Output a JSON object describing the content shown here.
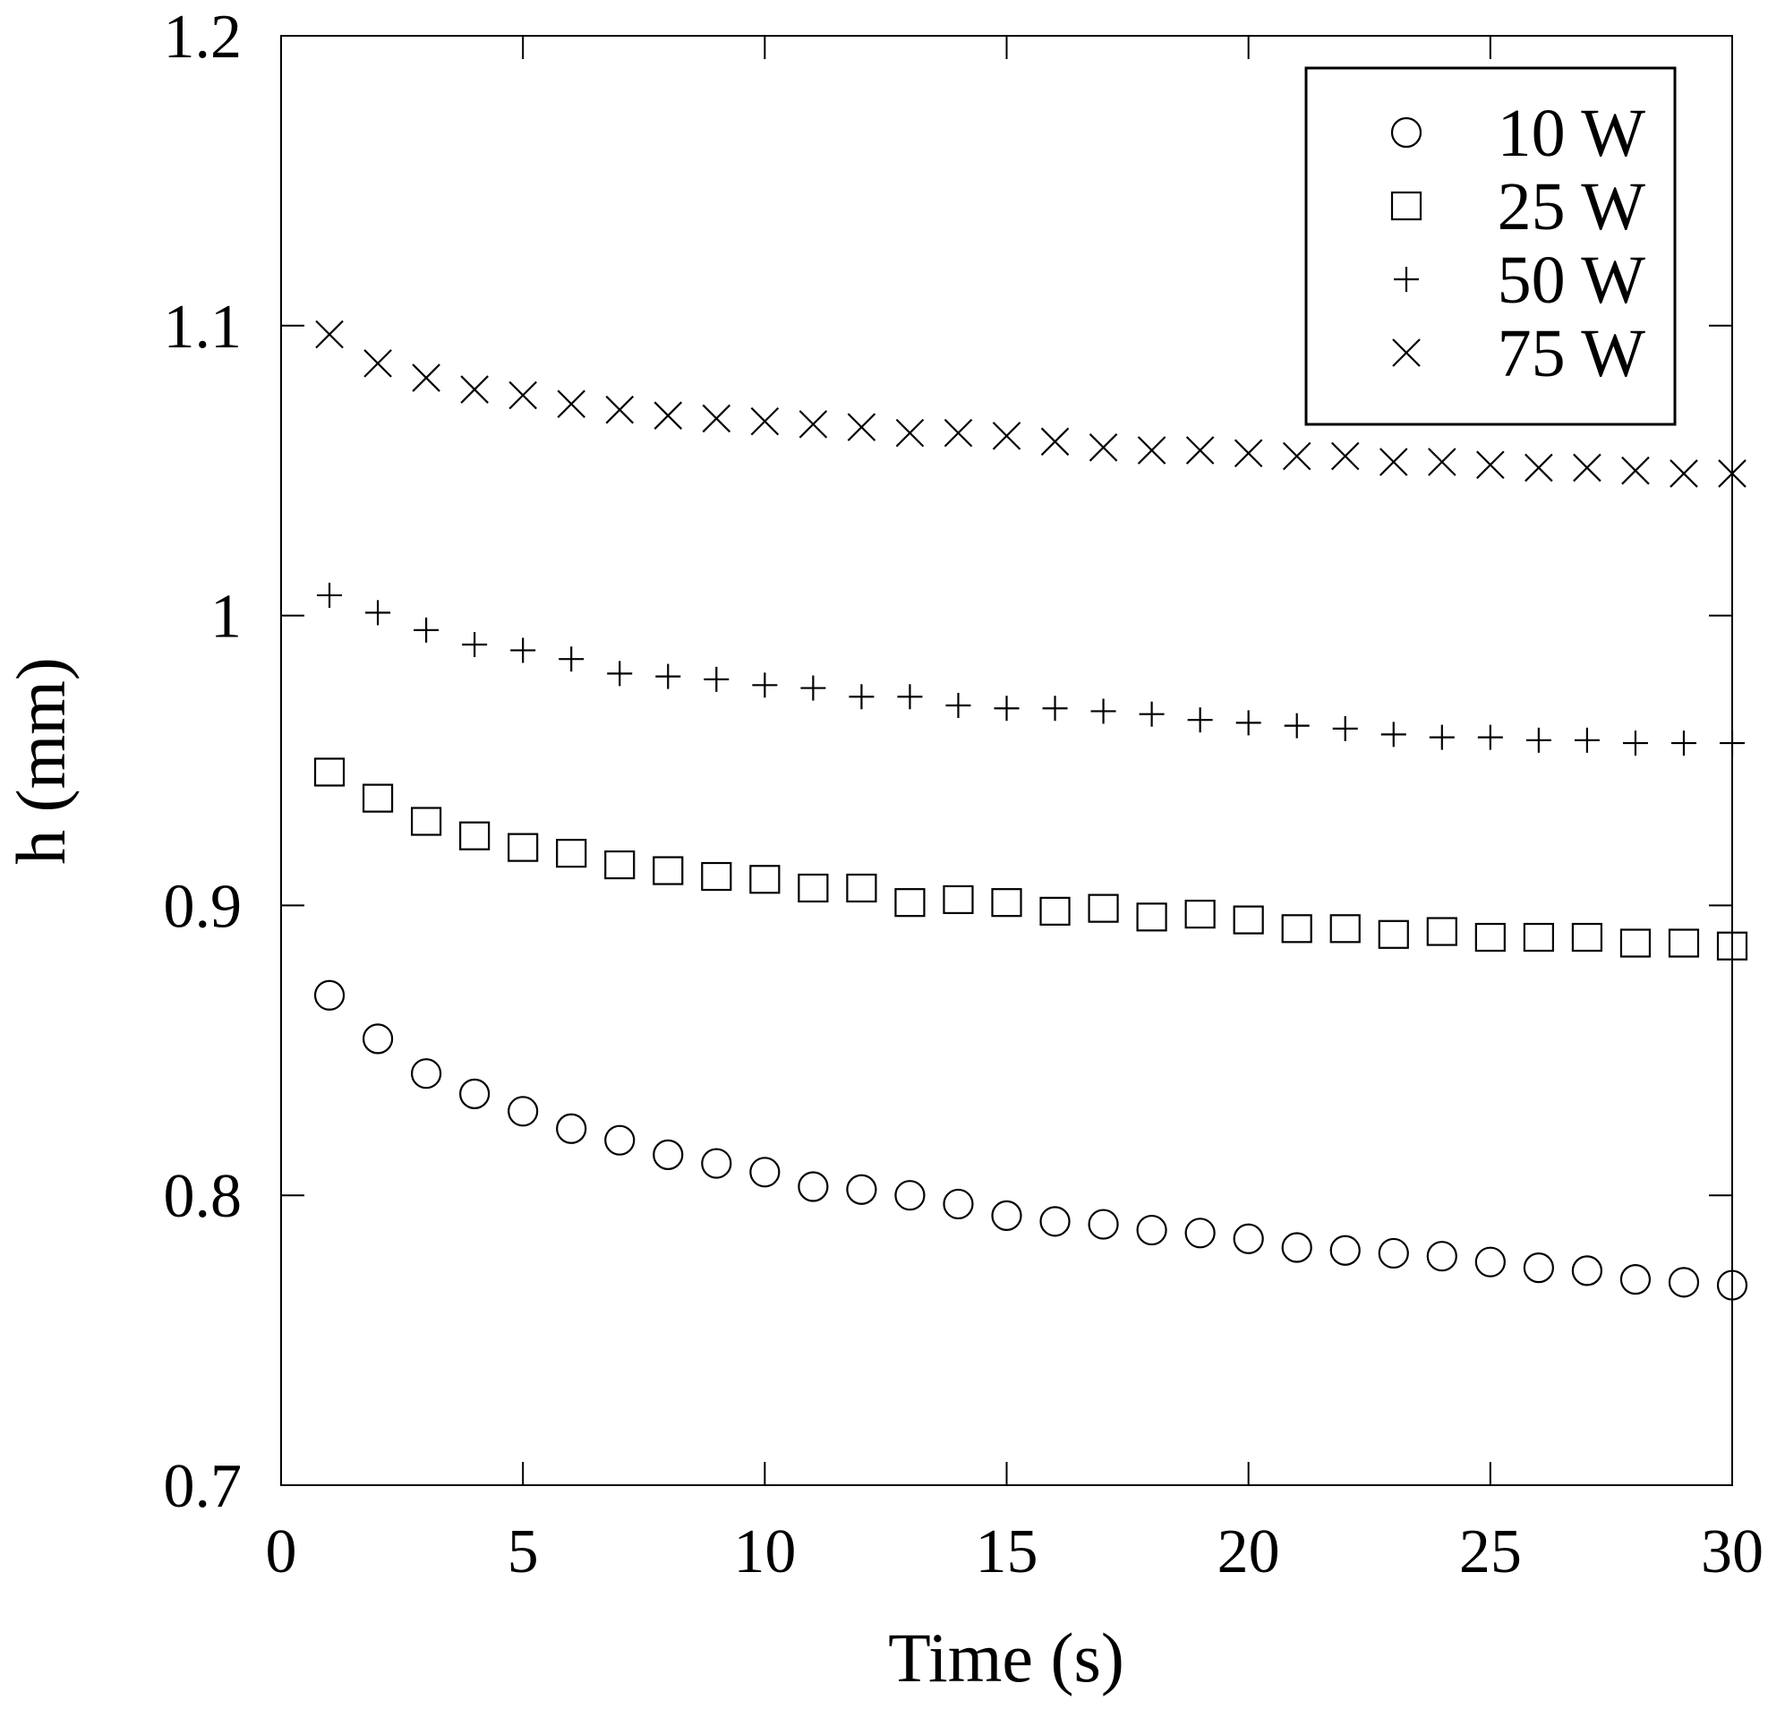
{
  "chart_data": {
    "type": "scatter",
    "title": "",
    "xlabel": "Time (s)",
    "ylabel": "h (mm)",
    "xlim": [
      0,
      30
    ],
    "ylim": [
      0.7,
      1.2
    ],
    "xticks": [
      "0",
      "5",
      "10",
      "15",
      "20",
      "25",
      "30"
    ],
    "yticks": [
      "0.7",
      "0.8",
      "0.9",
      "1",
      "1.1",
      "1.2"
    ],
    "grid": false,
    "legend_position": "top-right",
    "x": [
      1,
      2,
      3,
      4,
      5,
      6,
      7,
      8,
      9,
      10,
      11,
      12,
      13,
      14,
      15,
      16,
      17,
      18,
      19,
      20,
      21,
      22,
      23,
      24,
      25,
      26,
      27,
      28,
      29,
      30
    ],
    "series": [
      {
        "name": "10 W",
        "marker": "circle",
        "values": [
          0.869,
          0.854,
          0.842,
          0.835,
          0.829,
          0.823,
          0.819,
          0.814,
          0.811,
          0.808,
          0.803,
          0.802,
          0.8,
          0.797,
          0.793,
          0.791,
          0.79,
          0.788,
          0.787,
          0.785,
          0.782,
          0.781,
          0.78,
          0.779,
          0.777,
          0.775,
          0.774,
          0.771,
          0.77,
          0.769
        ]
      },
      {
        "name": "25 W",
        "marker": "square",
        "values": [
          0.946,
          0.937,
          0.929,
          0.924,
          0.92,
          0.918,
          0.914,
          0.912,
          0.91,
          0.909,
          0.906,
          0.906,
          0.901,
          0.902,
          0.901,
          0.898,
          0.899,
          0.896,
          0.897,
          0.895,
          0.892,
          0.892,
          0.89,
          0.891,
          0.889,
          0.889,
          0.889,
          0.887,
          0.887,
          0.886
        ]
      },
      {
        "name": "50 W",
        "marker": "plus",
        "values": [
          1.007,
          1.001,
          0.995,
          0.99,
          0.988,
          0.985,
          0.98,
          0.979,
          0.978,
          0.976,
          0.975,
          0.972,
          0.972,
          0.969,
          0.968,
          0.968,
          0.967,
          0.966,
          0.964,
          0.963,
          0.962,
          0.961,
          0.959,
          0.958,
          0.958,
          0.957,
          0.957,
          0.956,
          0.956,
          0.956
        ]
      },
      {
        "name": "75 W",
        "marker": "x",
        "values": [
          1.097,
          1.087,
          1.082,
          1.078,
          1.076,
          1.073,
          1.071,
          1.069,
          1.068,
          1.067,
          1.066,
          1.065,
          1.063,
          1.063,
          1.062,
          1.06,
          1.058,
          1.057,
          1.057,
          1.056,
          1.055,
          1.055,
          1.053,
          1.053,
          1.052,
          1.051,
          1.051,
          1.05,
          1.049,
          1.049
        ]
      }
    ]
  }
}
